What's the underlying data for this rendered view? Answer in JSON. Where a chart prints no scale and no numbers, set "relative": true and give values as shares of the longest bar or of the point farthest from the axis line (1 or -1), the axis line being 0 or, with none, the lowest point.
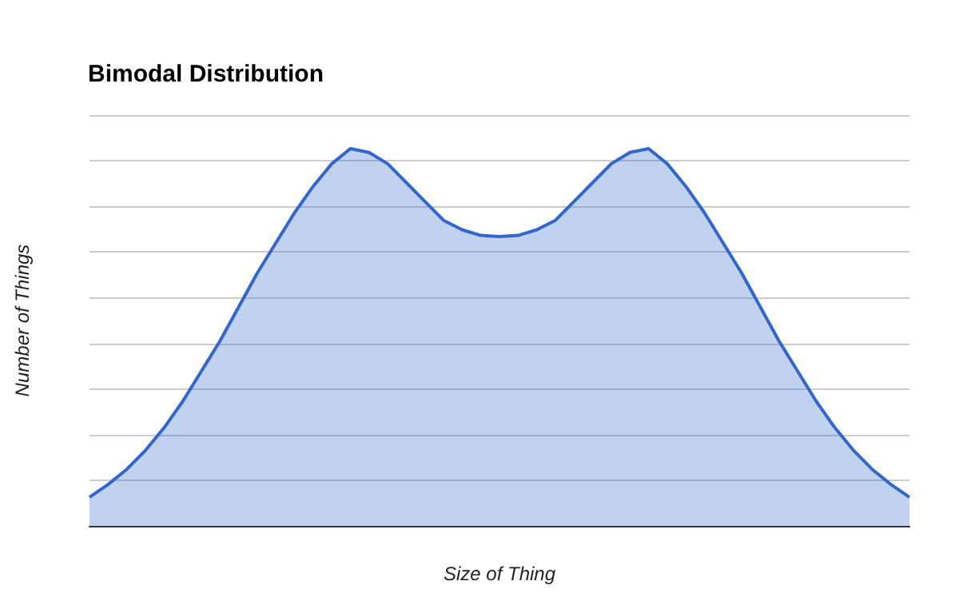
{
  "chart_data": {
    "type": "area",
    "title": "Bimodal Distribution",
    "xlabel": "Size of Thing",
    "ylabel": "Number of Things",
    "relative": true,
    "grid": "y",
    "color": "#3366cc",
    "categories": [
      null,
      null,
      null,
      null,
      null,
      null,
      null,
      null,
      null,
      null,
      null,
      null,
      null,
      null,
      null,
      null,
      null,
      null,
      null,
      null,
      null,
      null,
      null,
      null,
      null,
      null,
      null,
      null,
      null,
      null,
      null,
      null,
      null,
      null,
      null,
      null,
      null,
      null,
      null,
      null,
      null,
      null,
      null,
      null,
      null
    ],
    "values": [
      0.076,
      0.11,
      0.15,
      0.2,
      0.26,
      0.33,
      0.41,
      0.49,
      0.58,
      0.67,
      0.75,
      0.83,
      0.9,
      0.96,
      1.0,
      0.99,
      0.96,
      0.91,
      0.86,
      0.81,
      0.785,
      0.77,
      0.767,
      0.77,
      0.785,
      0.81,
      0.86,
      0.91,
      0.96,
      0.99,
      1.0,
      0.96,
      0.9,
      0.83,
      0.75,
      0.67,
      0.58,
      0.49,
      0.41,
      0.33,
      0.26,
      0.2,
      0.15,
      0.11,
      0.076
    ]
  }
}
